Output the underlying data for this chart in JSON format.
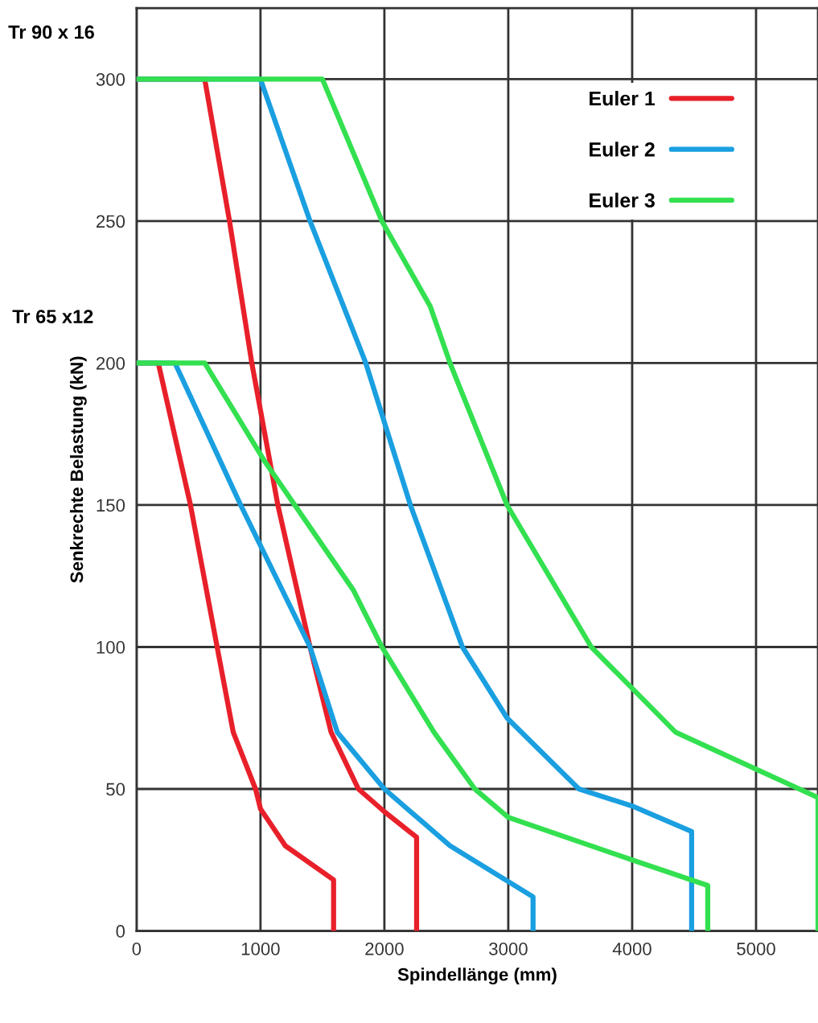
{
  "chart_data": {
    "type": "line",
    "xlabel": "Spindellänge (mm)",
    "ylabel": "Senkrechte Belastung (kN)",
    "xlim": [
      0,
      5500
    ],
    "ylim": [
      0,
      325
    ],
    "xticks": [
      0,
      1000,
      2000,
      3000,
      4000,
      5000
    ],
    "yticks": [
      0,
      50,
      100,
      150,
      200,
      250,
      300
    ],
    "grid": true,
    "legend": "top right",
    "marker": "none",
    "line_style": "solid",
    "annotations": [
      "Tr 90 x 16",
      "Tr 65 x12"
    ],
    "series": [
      {
        "name": "Euler 1",
        "color": "#e8202a",
        "x": [
          0,
          550,
          750,
          930,
          1140,
          1400,
          1570,
          1790,
          2000,
          2260,
          2260
        ],
        "values": [
          300,
          300,
          250,
          200,
          150,
          100,
          70,
          50,
          42,
          33,
          0
        ]
      },
      {
        "name": "Euler 2",
        "color": "#1a9fe0",
        "x": [
          0,
          1000,
          1400,
          1850,
          2210,
          2630,
          2990,
          3570,
          4000,
          4480,
          4480
        ],
        "values": [
          300,
          300,
          250,
          200,
          150,
          100,
          75,
          50,
          44,
          35,
          0
        ]
      },
      {
        "name": "Euler 3",
        "color": "#33e050",
        "x": [
          0,
          1500,
          1980,
          2370,
          2530,
          2990,
          3670,
          4350,
          5000,
          5500,
          5500
        ],
        "values": [
          300,
          300,
          250,
          220,
          200,
          150,
          100,
          70,
          57,
          47,
          0
        ]
      },
      {
        "color": "#e8202a",
        "x": [
          0,
          175,
          435,
          650,
          780,
          960,
          1000,
          1200,
          1590,
          1590
        ],
        "values": [
          200,
          200,
          150,
          100,
          70,
          50,
          43,
          30,
          18,
          0
        ]
      },
      {
        "color": "#1a9fe0",
        "x": [
          0,
          310,
          840,
          1400,
          1620,
          2000,
          2530,
          3200,
          3200
        ],
        "values": [
          200,
          200,
          150,
          100,
          70,
          50,
          30,
          12,
          0
        ]
      },
      {
        "color": "#33e050",
        "x": [
          0,
          550,
          1040,
          1750,
          1980,
          2400,
          2730,
          3000,
          4000,
          4610,
          4610
        ],
        "values": [
          200,
          200,
          165,
          120,
          100,
          70,
          50,
          40,
          25,
          16,
          0
        ]
      }
    ]
  }
}
